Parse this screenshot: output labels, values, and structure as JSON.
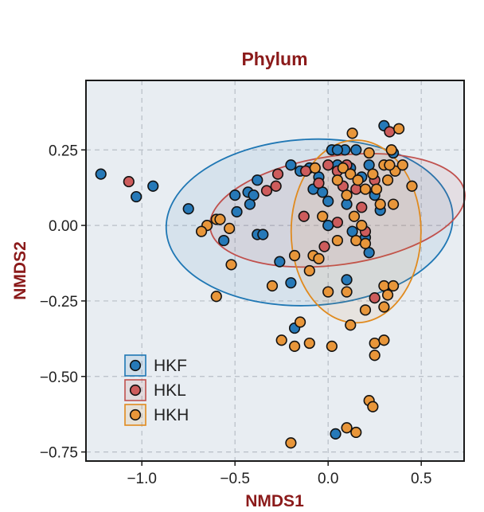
{
  "chart_data": {
    "type": "scatter",
    "title": "Phylum",
    "xlabel": "NMDS1",
    "ylabel": "NMDS2",
    "xlim": [
      -1.3,
      0.73
    ],
    "ylim": [
      -0.78,
      0.48
    ],
    "xticks": [
      -1.0,
      -0.5,
      0.0,
      0.5
    ],
    "xtick_labels": [
      "−1.0",
      "−0.5",
      "0.0",
      "0.5"
    ],
    "yticks": [
      0.25,
      0.0,
      -0.25,
      -0.5,
      -0.75
    ],
    "ytick_labels": [
      "0.25",
      "0.00",
      "−0.25",
      "−0.50",
      "−0.75"
    ],
    "grid": true,
    "legend_position": "bottom-left",
    "colors": {
      "panel_bg": "#e8edf2",
      "grid": "#b8bec6",
      "title": "#8b1a1a"
    },
    "series": [
      {
        "name": "HKF",
        "color": "#2679b8",
        "ellipse_color": "#1f77b4",
        "ellipse": {
          "cx": -0.1,
          "cy": 0.01,
          "rx": 0.77,
          "ry": 0.275,
          "angle_deg": 3
        },
        "points": [
          [
            -1.22,
            0.17
          ],
          [
            -1.03,
            0.095
          ],
          [
            -0.94,
            0.13
          ],
          [
            -0.75,
            0.055
          ],
          [
            -0.56,
            -0.05
          ],
          [
            -0.5,
            0.1
          ],
          [
            -0.49,
            0.045
          ],
          [
            -0.43,
            0.11
          ],
          [
            -0.42,
            0.07
          ],
          [
            -0.4,
            0.1
          ],
          [
            -0.38,
            -0.03
          ],
          [
            -0.35,
            -0.03
          ],
          [
            -0.38,
            0.15
          ],
          [
            -0.2,
            0.2
          ],
          [
            -0.15,
            0.18
          ],
          [
            -0.1,
            0.19
          ],
          [
            -0.08,
            0.12
          ],
          [
            -0.05,
            0.16
          ],
          [
            -0.03,
            0.11
          ],
          [
            0.0,
            0.08
          ],
          [
            0.02,
            0.25
          ],
          [
            0.05,
            0.2
          ],
          [
            0.09,
            0.25
          ],
          [
            0.12,
            0.19
          ],
          [
            0.15,
            0.25
          ],
          [
            0.18,
            0.16
          ],
          [
            0.22,
            0.2
          ],
          [
            0.25,
            0.1
          ],
          [
            0.28,
            0.05
          ],
          [
            0.3,
            0.33
          ],
          [
            0.35,
            0.24
          ],
          [
            0.05,
            0.25
          ],
          [
            0.13,
            -0.02
          ],
          [
            0.2,
            -0.04
          ],
          [
            0.22,
            -0.09
          ],
          [
            -0.26,
            -0.12
          ],
          [
            -0.2,
            -0.19
          ],
          [
            0.1,
            -0.18
          ],
          [
            -0.18,
            -0.34
          ],
          [
            0.0,
            0.0
          ],
          [
            0.04,
            -0.69
          ],
          [
            0.1,
            0.07
          ]
        ]
      },
      {
        "name": "HKL",
        "color": "#cd5c5c",
        "ellipse_color": "#c0504d",
        "ellipse": {
          "cx": 0.05,
          "cy": 0.05,
          "rx": 0.69,
          "ry": 0.18,
          "angle_deg": 8
        },
        "points": [
          [
            -1.07,
            0.145
          ],
          [
            -0.33,
            0.115
          ],
          [
            -0.28,
            0.13
          ],
          [
            -0.27,
            0.17
          ],
          [
            -0.12,
            0.18
          ],
          [
            -0.05,
            0.14
          ],
          [
            0.0,
            0.2
          ],
          [
            0.05,
            0.18
          ],
          [
            0.08,
            0.13
          ],
          [
            0.1,
            0.2
          ],
          [
            0.15,
            0.12
          ],
          [
            -0.02,
            -0.07
          ],
          [
            0.05,
            0.01
          ],
          [
            0.18,
            0.06
          ],
          [
            0.25,
            0.15
          ],
          [
            0.33,
            0.31
          ],
          [
            -0.13,
            0.03
          ],
          [
            0.25,
            -0.24
          ],
          [
            0.2,
            -0.02
          ]
        ]
      },
      {
        "name": "HKH",
        "color": "#e8963a",
        "ellipse_color": "#e08a1e",
        "ellipse": {
          "cx": 0.15,
          "cy": -0.02,
          "rx": 0.49,
          "ry": 0.215,
          "angle_deg": 90
        },
        "points": [
          [
            -0.3,
            -0.2
          ],
          [
            -0.18,
            -0.1
          ],
          [
            -0.1,
            -0.15
          ],
          [
            -0.65,
            0.0
          ],
          [
            -0.6,
            0.02
          ],
          [
            -0.68,
            -0.02
          ],
          [
            -0.53,
            -0.01
          ],
          [
            -0.58,
            0.02
          ],
          [
            -0.52,
            -0.13
          ],
          [
            -0.6,
            -0.235
          ],
          [
            -0.07,
            0.19
          ],
          [
            -0.03,
            0.03
          ],
          [
            0.0,
            -0.22
          ],
          [
            0.05,
            -0.05
          ],
          [
            0.08,
            0.19
          ],
          [
            0.1,
            0.1
          ],
          [
            0.12,
            0.17
          ],
          [
            0.14,
            0.03
          ],
          [
            0.16,
            0.15
          ],
          [
            0.18,
            0.0
          ],
          [
            0.2,
            0.12
          ],
          [
            0.22,
            0.24
          ],
          [
            0.24,
            0.17
          ],
          [
            0.26,
            0.12
          ],
          [
            0.28,
            0.07
          ],
          [
            0.3,
            0.2
          ],
          [
            0.32,
            0.15
          ],
          [
            0.34,
            0.25
          ],
          [
            0.36,
            0.18
          ],
          [
            0.38,
            0.32
          ],
          [
            0.4,
            0.2
          ],
          [
            0.45,
            0.13
          ],
          [
            0.35,
            0.07
          ],
          [
            0.3,
            -0.2
          ],
          [
            0.32,
            -0.23
          ],
          [
            0.3,
            -0.27
          ],
          [
            0.35,
            -0.2
          ],
          [
            0.2,
            -0.28
          ],
          [
            0.1,
            -0.22
          ],
          [
            -0.15,
            -0.32
          ],
          [
            -0.1,
            -0.39
          ],
          [
            -0.25,
            -0.38
          ],
          [
            -0.18,
            -0.4
          ],
          [
            0.02,
            -0.4
          ],
          [
            0.12,
            -0.33
          ],
          [
            0.25,
            -0.39
          ],
          [
            0.3,
            -0.38
          ],
          [
            0.25,
            -0.43
          ],
          [
            0.22,
            -0.58
          ],
          [
            0.24,
            -0.6
          ],
          [
            0.1,
            -0.67
          ],
          [
            0.15,
            -0.685
          ],
          [
            -0.2,
            -0.72
          ],
          [
            0.13,
            0.305
          ],
          [
            -0.08,
            -0.1
          ],
          [
            0.05,
            0.15
          ],
          [
            0.15,
            -0.05
          ],
          [
            0.2,
            -0.06
          ],
          [
            -0.05,
            -0.11
          ],
          [
            0.33,
            0.2
          ]
        ]
      }
    ]
  }
}
